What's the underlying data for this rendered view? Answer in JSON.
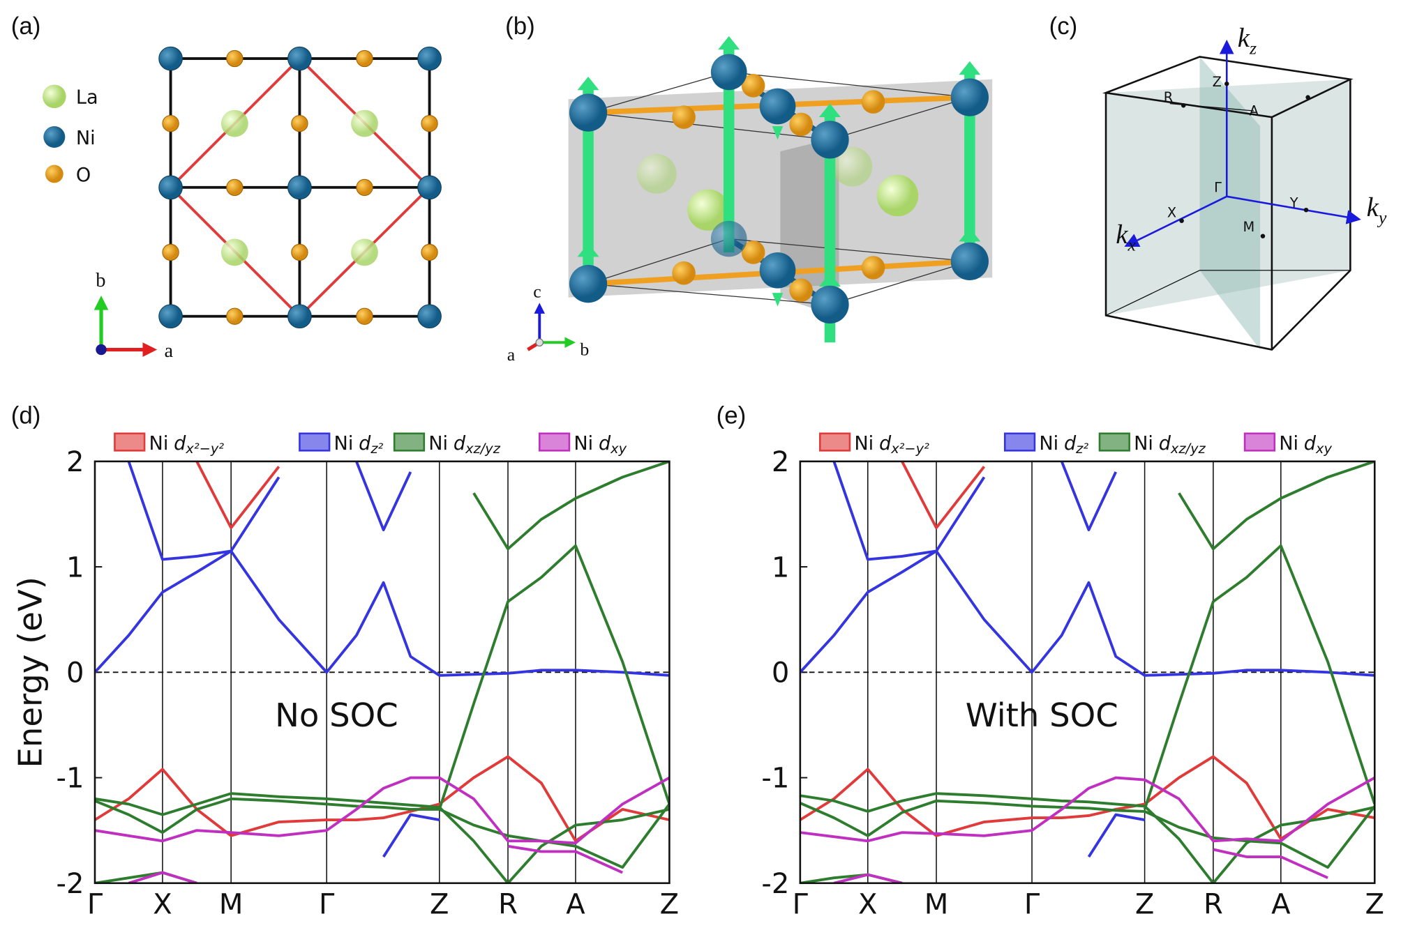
{
  "panels": {
    "a": {
      "label": "(a)",
      "atoms": [
        "La",
        "Ni",
        "O"
      ],
      "axes": [
        "b",
        "a"
      ]
    },
    "b": {
      "label": "(b)",
      "axes": [
        "c",
        "a",
        "b"
      ]
    },
    "c": {
      "label": "(c)",
      "axes": {
        "kz": {
          "symbol": "k",
          "sub": "z"
        },
        "ky": {
          "symbol": "k",
          "sub": "y"
        },
        "kx": {
          "symbol": "k",
          "sub": "x"
        }
      },
      "points": [
        "Z",
        "R",
        "A",
        "Γ",
        "X",
        "Y",
        "M"
      ]
    }
  },
  "chart_data": [
    {
      "type": "line",
      "label": "(d)",
      "ylabel": "Energy (eV)",
      "annotation": "No SOC",
      "x": [
        0,
        0.375,
        0.75,
        1.13,
        1.51,
        2.04,
        2.57,
        2.9,
        3.2,
        3.5,
        3.82,
        4.2,
        4.58,
        4.95,
        5.33,
        5.85,
        6.37
      ],
      "xlim": [
        0,
        6.37
      ],
      "ylim": [
        -2,
        2
      ],
      "yticks": [
        -2,
        -1,
        0,
        1,
        2
      ],
      "hline": 0,
      "xticks": [
        {
          "value": 0,
          "label": "Γ"
        },
        {
          "value": 0.75,
          "label": "X"
        },
        {
          "value": 1.51,
          "label": "M"
        },
        {
          "value": 2.57,
          "label": "Γ"
        },
        {
          "value": 3.82,
          "label": "Z"
        },
        {
          "value": 4.58,
          "label": "R"
        },
        {
          "value": 5.33,
          "label": "A"
        },
        {
          "value": 6.37,
          "label": "Z"
        }
      ],
      "series": [
        {
          "name": "Ni",
          "symbol": "d",
          "orbital": "x²−y²",
          "color": "#e03a3a",
          "bands": [
            [
              null,
              null,
              null,
              2.0,
              1.37,
              1.95,
              null,
              null,
              null,
              null,
              null,
              null,
              null,
              null,
              null,
              null,
              null
            ],
            [
              -1.4,
              -1.2,
              -0.92,
              -1.3,
              -1.55,
              -1.42,
              -1.4,
              -1.4,
              -1.38,
              -1.32,
              -1.25,
              -1.0,
              -0.8,
              -1.05,
              -1.6,
              -1.3,
              -1.4
            ]
          ]
        },
        {
          "name": "Ni",
          "symbol": "d",
          "orbital": "z²",
          "color": "#3535e0",
          "bands": [
            [
              0,
              0.35,
              0.76,
              0.95,
              1.15,
              0.5,
              0,
              0.35,
              0.85,
              0.15,
              -0.03,
              -0.02,
              -0.01,
              0.02,
              0.02,
              0.0,
              -0.03
            ],
            [
              null,
              2.0,
              1.07,
              1.1,
              1.15,
              1.85,
              null,
              null,
              null,
              null,
              null,
              null,
              null,
              null,
              null,
              null,
              null
            ],
            [
              null,
              null,
              null,
              null,
              null,
              null,
              null,
              2.0,
              1.35,
              1.9,
              null,
              null,
              null,
              null,
              null,
              null,
              null
            ],
            [
              null,
              null,
              null,
              null,
              null,
              null,
              null,
              null,
              -1.75,
              -1.35,
              -1.4,
              null,
              null,
              null,
              null,
              null,
              null
            ]
          ]
        },
        {
          "name": "Ni",
          "symbol": "d",
          "orbital": "xz/yz",
          "color": "#2e7d2e",
          "bands": [
            [
              -1.2,
              -1.25,
              -1.35,
              -1.25,
              -1.15,
              -1.18,
              -1.2,
              -1.22,
              -1.24,
              -1.26,
              -1.28,
              -1.6,
              -2.0,
              -1.65,
              -1.45,
              -1.4,
              -1.3
            ],
            [
              -1.22,
              -1.35,
              -1.52,
              -1.3,
              -1.2,
              -1.22,
              -1.25,
              -1.27,
              -1.28,
              -1.3,
              -1.3,
              -1.45,
              -1.55,
              -1.6,
              -1.65,
              -1.85,
              -1.25
            ],
            [
              null,
              null,
              null,
              null,
              null,
              null,
              null,
              null,
              null,
              null,
              -1.3,
              -0.3,
              0.67,
              0.9,
              1.2,
              0.1,
              -1.25
            ],
            [
              null,
              null,
              null,
              null,
              null,
              null,
              null,
              null,
              null,
              null,
              null,
              1.7,
              1.17,
              1.45,
              1.65,
              1.85,
              2.0
            ],
            [
              -2.0,
              -1.95,
              -1.9,
              -2.0,
              null,
              null,
              null,
              null,
              null,
              null,
              null,
              null,
              null,
              null,
              null,
              null,
              null
            ]
          ]
        },
        {
          "name": "Ni",
          "symbol": "d",
          "orbital": "xy",
          "color": "#c030c0",
          "bands": [
            [
              -1.5,
              -1.55,
              -1.6,
              -1.5,
              -1.52,
              -1.55,
              -1.5,
              -1.3,
              -1.1,
              -1.0,
              -1.0,
              -1.2,
              -1.6,
              -1.6,
              -1.62,
              -1.25,
              -1.0
            ],
            [
              null,
              -2.0,
              -1.9,
              -2.0,
              null,
              null,
              null,
              null,
              null,
              null,
              null,
              null,
              -1.65,
              -1.7,
              -1.7,
              -1.9,
              null
            ]
          ]
        }
      ]
    },
    {
      "type": "line",
      "label": "(e)",
      "annotation": "With SOC",
      "x": [
        0,
        0.375,
        0.75,
        1.13,
        1.51,
        2.04,
        2.57,
        2.9,
        3.2,
        3.5,
        3.82,
        4.2,
        4.58,
        4.95,
        5.33,
        5.85,
        6.37
      ],
      "xlim": [
        0,
        6.37
      ],
      "ylim": [
        -2,
        2
      ],
      "yticks": [
        -2,
        -1,
        0,
        1,
        2
      ],
      "hline": 0,
      "xticks": [
        {
          "value": 0,
          "label": "Γ"
        },
        {
          "value": 0.75,
          "label": "X"
        },
        {
          "value": 1.51,
          "label": "M"
        },
        {
          "value": 2.57,
          "label": "Γ"
        },
        {
          "value": 3.82,
          "label": "Z"
        },
        {
          "value": 4.58,
          "label": "R"
        },
        {
          "value": 5.33,
          "label": "A"
        },
        {
          "value": 6.37,
          "label": "Z"
        }
      ],
      "series": [
        {
          "name": "Ni",
          "symbol": "d",
          "orbital": "x²−y²",
          "color": "#e03a3a",
          "bands": [
            [
              null,
              null,
              null,
              2.0,
              1.37,
              1.95,
              null,
              null,
              null,
              null,
              null,
              null,
              null,
              null,
              null,
              null,
              null
            ],
            [
              -1.4,
              -1.2,
              -0.92,
              -1.3,
              -1.55,
              -1.42,
              -1.38,
              -1.38,
              -1.36,
              -1.3,
              -1.25,
              -1.0,
              -0.8,
              -1.05,
              -1.58,
              -1.3,
              -1.38
            ]
          ]
        },
        {
          "name": "Ni",
          "symbol": "d",
          "orbital": "z²",
          "color": "#3535e0",
          "bands": [
            [
              0,
              0.35,
              0.76,
              0.95,
              1.15,
              0.5,
              0,
              0.35,
              0.85,
              0.15,
              -0.03,
              -0.02,
              -0.01,
              0.02,
              0.02,
              0.0,
              -0.03
            ],
            [
              null,
              2.0,
              1.07,
              1.1,
              1.15,
              1.85,
              null,
              null,
              null,
              null,
              null,
              null,
              null,
              null,
              null,
              null,
              null
            ],
            [
              null,
              null,
              null,
              null,
              null,
              null,
              null,
              2.0,
              1.35,
              1.9,
              null,
              null,
              null,
              null,
              null,
              null,
              null
            ],
            [
              null,
              null,
              null,
              null,
              null,
              null,
              null,
              null,
              -1.75,
              -1.35,
              -1.4,
              null,
              null,
              null,
              null,
              null,
              null
            ]
          ]
        },
        {
          "name": "Ni",
          "symbol": "d",
          "orbital": "xz/yz",
          "color": "#2e7d2e",
          "bands": [
            [
              -1.17,
              -1.22,
              -1.32,
              -1.22,
              -1.15,
              -1.17,
              -1.2,
              -1.22,
              -1.23,
              -1.25,
              -1.27,
              -1.58,
              -2.0,
              -1.62,
              -1.45,
              -1.38,
              -1.28
            ],
            [
              -1.24,
              -1.38,
              -1.55,
              -1.33,
              -1.22,
              -1.24,
              -1.27,
              -1.28,
              -1.29,
              -1.31,
              -1.32,
              -1.47,
              -1.57,
              -1.6,
              -1.62,
              -1.85,
              -1.27
            ],
            [
              null,
              null,
              null,
              null,
              null,
              null,
              null,
              null,
              null,
              null,
              -1.3,
              -0.3,
              0.67,
              0.9,
              1.2,
              0.1,
              -1.25
            ],
            [
              null,
              null,
              null,
              null,
              null,
              null,
              null,
              null,
              null,
              null,
              null,
              1.7,
              1.17,
              1.45,
              1.65,
              1.85,
              2.0
            ],
            [
              -2.0,
              -1.95,
              -1.92,
              -2.0,
              null,
              null,
              null,
              null,
              null,
              null,
              null,
              null,
              null,
              null,
              null,
              null,
              null
            ]
          ]
        },
        {
          "name": "Ni",
          "symbol": "d",
          "orbital": "xy",
          "color": "#c030c0",
          "bands": [
            [
              -1.52,
              -1.56,
              -1.6,
              -1.52,
              -1.53,
              -1.55,
              -1.5,
              -1.3,
              -1.1,
              -1.0,
              -1.02,
              -1.2,
              -1.6,
              -1.58,
              -1.6,
              -1.25,
              -1.0
            ],
            [
              null,
              -2.0,
              -1.92,
              -2.0,
              null,
              null,
              null,
              null,
              null,
              null,
              null,
              null,
              -1.68,
              -1.75,
              -1.75,
              -1.95,
              null
            ]
          ]
        }
      ]
    }
  ]
}
